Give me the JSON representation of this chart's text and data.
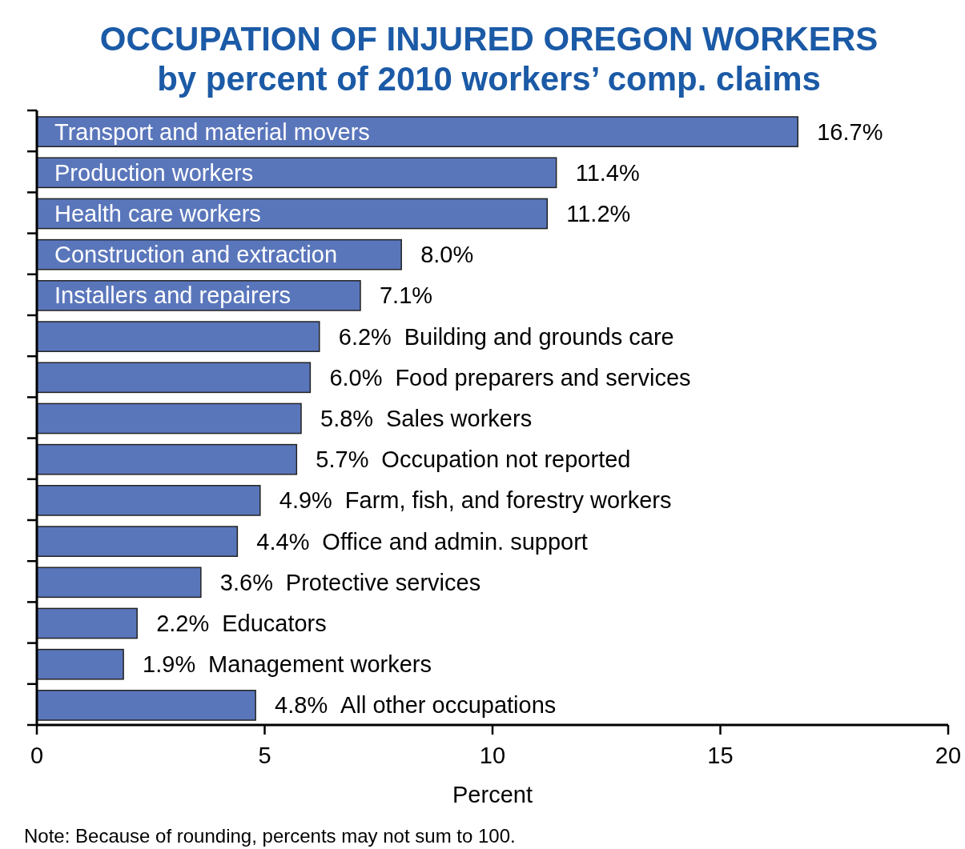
{
  "chart_data": {
    "type": "bar",
    "orientation": "horizontal",
    "title": "OCCUPATION OF INJURED OREGON WORKERS",
    "subtitle": "by percent of 2010 workers’ comp. claims",
    "xlabel": "Percent",
    "categories": [
      "Transport and material movers",
      "Production workers",
      "Health care workers",
      "Construction and extraction",
      "Installers and repairers",
      "Building and grounds care",
      "Food preparers and services",
      "Sales workers",
      "Occupation not reported",
      "Farm, fish, and forestry workers",
      "Office and admin. support",
      "Protective services",
      "Educators",
      "Management workers",
      "All other occupations"
    ],
    "values": [
      16.7,
      11.4,
      11.2,
      8.0,
      7.1,
      6.2,
      6.0,
      5.8,
      5.7,
      4.9,
      4.4,
      3.6,
      2.2,
      1.9,
      4.8
    ],
    "value_labels": [
      "16.7%",
      "11.4%",
      "11.2%",
      "8.0%",
      "7.1%",
      "6.2%",
      "6.0%",
      "5.8%",
      "5.7%",
      "4.9%",
      "4.4%",
      "3.6%",
      "2.2%",
      "1.9%",
      "4.8%"
    ],
    "color": "#5a76bb",
    "xlim": [
      0,
      20
    ],
    "xticks": [
      0,
      5,
      10,
      15,
      20
    ],
    "grid": false,
    "annotations": [
      "Note: Because of rounding, percents may not sum to 100."
    ]
  }
}
